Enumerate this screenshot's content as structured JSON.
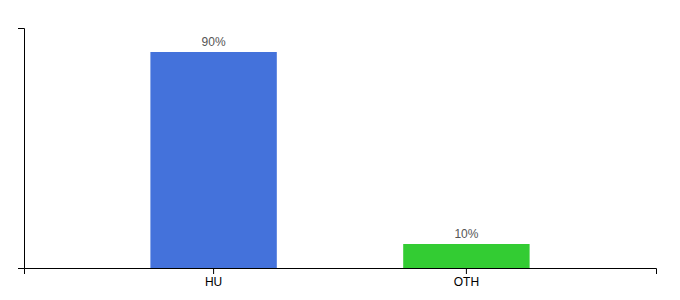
{
  "chart_data": {
    "type": "bar",
    "categories": [
      "HU",
      "OTH"
    ],
    "values": [
      90,
      10
    ],
    "value_labels": [
      "90%",
      "10%"
    ],
    "colors": [
      "#4472db",
      "#33cc33"
    ],
    "ylim": [
      0,
      100
    ],
    "data_labels": true,
    "tick_labels": "x"
  }
}
